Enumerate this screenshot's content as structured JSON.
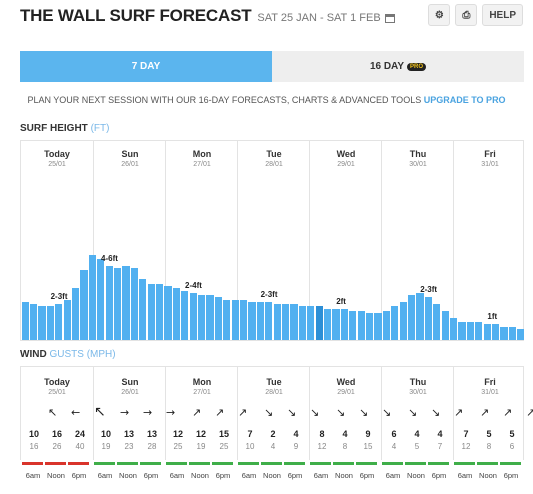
{
  "header": {
    "title": "THE WALL SURF FORECAST",
    "date_range": "SAT 25 JAN - SAT 1 FEB",
    "help_label": "HELP",
    "settings_icon": "gear-icon",
    "print_icon": "print-icon",
    "calendar_icon": "calendar-icon"
  },
  "tabs": [
    {
      "label": "7 DAY",
      "active": true
    },
    {
      "label": "16 DAY",
      "badge": "PRO",
      "active": false
    }
  ],
  "promo": {
    "text": "PLAN YOUR NEXT SESSION WITH OUR 16-DAY FORECASTS, CHARTS & ADVANCED TOOLS",
    "link": "UPGRADE TO PRO"
  },
  "surf": {
    "title": "SURF HEIGHT",
    "unit": "(FT)"
  },
  "wind": {
    "title": "WIND",
    "gusts": "GUSTS",
    "unit": "(MPH)"
  },
  "days": [
    {
      "name": "Today",
      "date": "25/01"
    },
    {
      "name": "Sun",
      "date": "26/01"
    },
    {
      "name": "Mon",
      "date": "27/01"
    },
    {
      "name": "Tue",
      "date": "28/01"
    },
    {
      "name": "Wed",
      "date": "29/01"
    },
    {
      "name": "Thu",
      "date": "30/01"
    },
    {
      "name": "Fri",
      "date": "31/01"
    }
  ],
  "colors": {
    "bar": "#51b0f0",
    "bar_current": "#2d8fd6",
    "rating_red": "#d9342b",
    "rating_green": "#3fae49"
  },
  "surf_heights_ft": [
    1.7,
    1.6,
    1.5,
    1.5,
    1.6,
    1.8,
    2.3,
    3.1,
    3.8,
    3.6,
    3.3,
    3.2,
    3.3,
    3.2,
    2.7,
    2.5,
    2.5,
    2.4,
    2.3,
    2.2,
    2.1,
    2.0,
    2.0,
    1.9,
    1.8,
    1.8,
    1.8,
    1.7,
    1.7,
    1.7,
    1.6,
    1.6,
    1.6,
    1.5,
    1.5,
    1.5,
    1.4,
    1.4,
    1.4,
    1.3,
    1.3,
    1.2,
    1.2,
    1.3,
    1.5,
    1.7,
    2.0,
    2.1,
    1.9,
    1.6,
    1.3,
    1.0,
    0.8,
    0.8,
    0.8,
    0.7,
    0.7,
    0.6,
    0.6,
    0.5
  ],
  "surf_current_index": 35,
  "surf_labels": [
    {
      "text": "2-3ft",
      "index": 4
    },
    {
      "text": "4-6ft",
      "index": 10
    },
    {
      "text": "2-4ft",
      "index": 20
    },
    {
      "text": "2-3ft",
      "index": 29
    },
    {
      "text": "2ft",
      "index": 38
    },
    {
      "text": "2-3ft",
      "index": 48
    },
    {
      "text": "1ft",
      "index": 56
    }
  ],
  "wind_points": [
    {
      "dir": "↖",
      "speed": "10",
      "gust": "16",
      "rating": "red"
    },
    {
      "dir": "←",
      "speed": "16",
      "gust": "26",
      "rating": "red"
    },
    {
      "dir": "↖",
      "speed": "24",
      "gust": "40",
      "rating": "red"
    },
    {
      "dir": "→",
      "speed": "10",
      "gust": "19",
      "rating": "green"
    },
    {
      "dir": "→",
      "speed": "13",
      "gust": "23",
      "rating": "green"
    },
    {
      "dir": "→",
      "speed": "13",
      "gust": "28",
      "rating": "green"
    },
    {
      "dir": "↗",
      "speed": "12",
      "gust": "25",
      "rating": "green"
    },
    {
      "dir": "↗",
      "speed": "12",
      "gust": "19",
      "rating": "green"
    },
    {
      "dir": "↗",
      "speed": "15",
      "gust": "25",
      "rating": "green"
    },
    {
      "dir": "↘",
      "speed": "7",
      "gust": "10",
      "rating": "green"
    },
    {
      "dir": "↘",
      "speed": "2",
      "gust": "4",
      "rating": "green"
    },
    {
      "dir": "↘",
      "speed": "4",
      "gust": "9",
      "rating": "green"
    },
    {
      "dir": "↘",
      "speed": "8",
      "gust": "12",
      "rating": "green"
    },
    {
      "dir": "↘",
      "speed": "4",
      "gust": "8",
      "rating": "green"
    },
    {
      "dir": "↘",
      "speed": "9",
      "gust": "15",
      "rating": "green"
    },
    {
      "dir": "↘",
      "speed": "6",
      "gust": "4",
      "rating": "green"
    },
    {
      "dir": "↘",
      "speed": "4",
      "gust": "5",
      "rating": "green"
    },
    {
      "dir": "↗",
      "speed": "4",
      "gust": "7",
      "rating": "green"
    },
    {
      "dir": "↗",
      "speed": "7",
      "gust": "12",
      "rating": "green"
    },
    {
      "dir": "↗",
      "speed": "5",
      "gust": "8",
      "rating": "green"
    },
    {
      "dir": "↗",
      "speed": "5",
      "gust": "6",
      "rating": "green"
    }
  ],
  "time_labels": [
    "6am",
    "Noon",
    "6pm"
  ]
}
